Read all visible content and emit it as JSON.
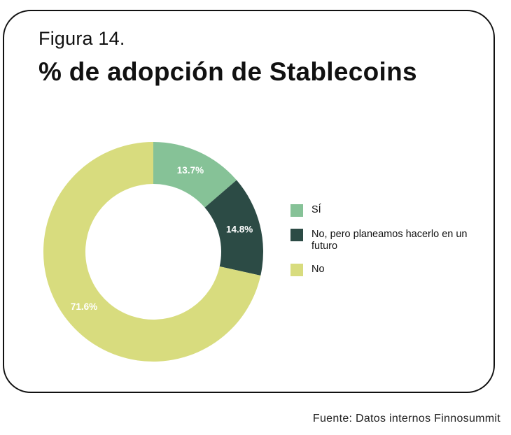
{
  "figure_label": "Figura 14.",
  "source": "Fuente: Datos internos Finnosummit",
  "chart_data": {
    "type": "pie",
    "title": "% de adopción de Stablecoins",
    "donut": true,
    "categories": [
      "SÍ",
      "No, pero planeamos hacerlo en un futuro",
      "No"
    ],
    "values": [
      13.7,
      14.8,
      71.6
    ],
    "labels": [
      "13.7%",
      "14.8%",
      "71.6%"
    ],
    "colors": [
      "#86c297",
      "#2c4b45",
      "#d8dc7e"
    ],
    "legend_position": "right"
  }
}
